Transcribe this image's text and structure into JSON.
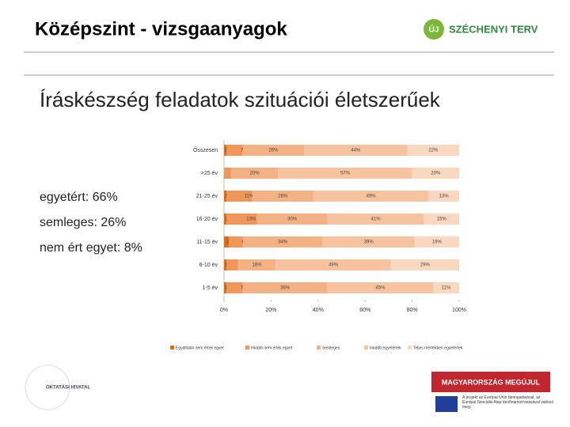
{
  "header": {
    "title": "Középszint - vizsgaanyagok",
    "logo_badge": "ÚJ",
    "logo_text": "SZÉCHENYI TERV"
  },
  "subtitle": "Íráskészség feladatok szituációi életszerűek",
  "summary": [
    "egyetért: 66%",
    "semleges: 26%",
    "nem ért egyet: 8%"
  ],
  "footer": {
    "office": "OKTATÁSI HIVATAL",
    "banner": "MAGYARORSZÁG MEGÚJUL",
    "eu_note": "A projekt az Európai Unió támogatásával, az Európai Szociális Alap társfinanszírozásával valósul meg."
  },
  "chart_data": {
    "type": "stacked-barh",
    "categories": [
      "Összesen",
      ">25 év",
      "21-25 év",
      "16-20 év",
      "11-15 év",
      "6-10 év",
      "1-5 év"
    ],
    "series": [
      {
        "name": "Egyáltalán nem értek egyet",
        "color": "#e46c0a",
        "values": [
          1,
          0,
          1,
          1,
          2,
          1,
          1
        ],
        "value_labels": [
          "1%",
          "0%",
          "1%",
          "1%",
          "2%",
          "1%",
          "1%"
        ]
      },
      {
        "name": "Inkább nem értek egyet",
        "color": "#f0965a",
        "values": [
          7,
          3,
          11,
          13,
          6,
          5,
          7
        ],
        "value_labels": [
          "7%",
          "3%",
          "11%",
          "13%",
          "6%",
          "5%",
          "7%"
        ]
      },
      {
        "name": "Semleges",
        "color": "#f4b183",
        "values": [
          26,
          20,
          26,
          30,
          34,
          16,
          36
        ],
        "value_labels": [
          "26%",
          "20%",
          "26%",
          "30%",
          "34%",
          "16%",
          "36%"
        ]
      },
      {
        "name": "Inkább egyetértek",
        "color": "#f7c39e",
        "values": [
          44,
          57,
          49,
          41,
          39,
          49,
          45
        ],
        "value_labels": [
          "44%",
          "57%",
          "49%",
          "41%",
          "39%",
          "49%",
          "45%"
        ]
      },
      {
        "name": "Teljes mértékben egyetértek",
        "color": "#fad7bf",
        "values": [
          22,
          20,
          13,
          15,
          19,
          29,
          11
        ],
        "value_labels": [
          "22%",
          "20%",
          "13%",
          "15%",
          "19%",
          "29%",
          "11%"
        ]
      }
    ],
    "xlim": [
      0,
      100
    ],
    "xticks": [
      {
        "value": 0,
        "label": "0%"
      },
      {
        "value": 20,
        "label": "20%"
      },
      {
        "value": 40,
        "label": "40%"
      },
      {
        "value": 60,
        "label": "60%"
      },
      {
        "value": 80,
        "label": "80%"
      },
      {
        "value": 100,
        "label": "100%"
      }
    ]
  }
}
